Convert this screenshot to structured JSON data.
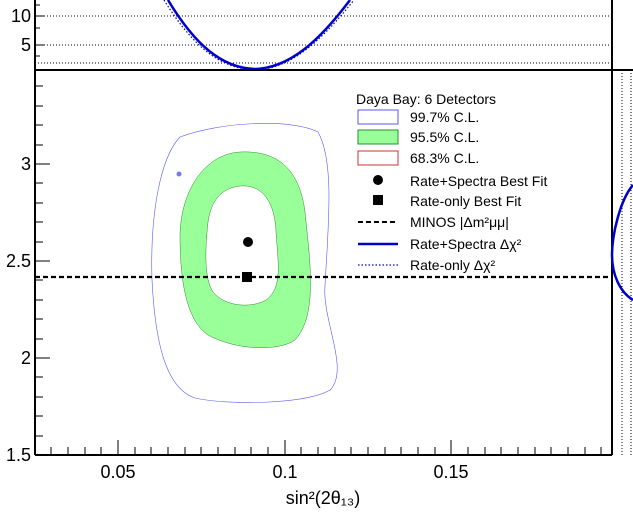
{
  "chart_data": {
    "type": "contour",
    "xlabel": "sin²(2θ₁₃)",
    "ylabel": "",
    "xlim": [
      0.026,
      0.198
    ],
    "ylim": [
      1.5,
      3.5
    ],
    "xticks": [
      "0.05",
      "0.1",
      "0.15"
    ],
    "yticks": [
      "1.5",
      "2",
      "2.5",
      "3"
    ],
    "top_panel_yticks": [
      "5",
      "10"
    ],
    "best_fit_rate_spectra": {
      "x": 0.09,
      "y": 2.59
    },
    "best_fit_rate_only": {
      "x": 0.089,
      "y": 2.41
    },
    "minos_dm2": 2.41,
    "legend": {
      "title": "Daya Bay: 6 Detectors",
      "entries": [
        {
          "label": "99.7% C.L."
        },
        {
          "label": "95.5% C.L."
        },
        {
          "label": "68.3% C.L."
        },
        {
          "label": "Rate+Spectra Best Fit"
        },
        {
          "label": "Rate-only Best Fit"
        },
        {
          "label": "MINOS |Δm²μμ|"
        },
        {
          "label": "Rate+Spectra Δχ²"
        },
        {
          "label": "Rate-only Δχ²"
        }
      ]
    },
    "colors": {
      "contour_99_7": "#5a5aee",
      "contour_95_5": "#99ff99",
      "contour_68_3": "#cc3333",
      "rate_spectra_line": "#0000cc",
      "rate_only_line": "#0000cc",
      "minos_line": "#000000"
    }
  }
}
